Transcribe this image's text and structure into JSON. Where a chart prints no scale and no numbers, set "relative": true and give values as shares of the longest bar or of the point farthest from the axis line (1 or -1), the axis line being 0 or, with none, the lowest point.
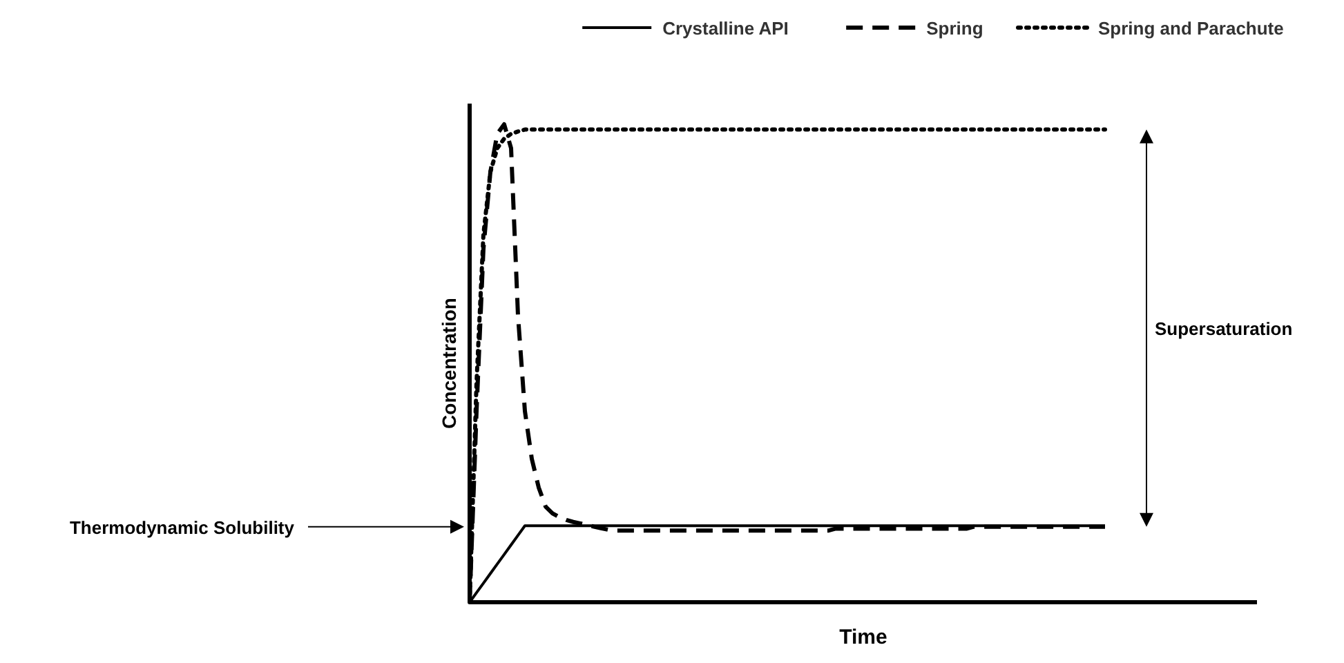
{
  "chart_data": {
    "type": "line",
    "relative": true,
    "xlabel": "Time",
    "ylabel": "Concentration",
    "legend": "top right",
    "marker": "none",
    "categories": [
      null,
      null,
      null,
      null,
      null,
      null,
      null,
      null,
      null,
      null,
      null,
      null,
      null,
      null,
      null,
      null,
      null,
      null,
      null,
      null,
      null,
      null,
      null,
      null,
      null,
      null,
      null,
      null,
      null,
      null,
      null,
      null,
      null,
      null,
      null,
      null,
      null,
      null,
      null,
      null,
      null,
      null,
      null,
      null,
      null,
      null,
      null,
      null,
      null,
      null,
      null,
      null,
      null,
      null,
      null,
      null,
      null,
      null,
      null,
      null,
      null,
      null,
      null,
      null,
      null,
      null,
      null,
      null,
      null,
      null,
      null,
      null,
      null,
      null,
      null,
      null,
      null,
      null,
      null,
      null,
      null,
      null,
      null,
      null,
      null,
      null,
      null,
      null,
      null,
      null,
      null,
      null,
      null
    ],
    "series": [
      {
        "name": "Crystalline API",
        "color": "#000000",
        "line_style": "solid",
        "values": [
          0,
          0.02,
          0.04,
          0.06,
          0.08,
          0.1,
          0.12,
          0.14,
          0.16,
          0.16,
          0.16,
          0.16,
          0.16,
          0.16,
          0.16,
          0.16,
          0.16,
          0.16,
          0.16,
          0.16,
          0.16,
          0.16,
          0.16,
          0.16,
          0.16,
          0.16,
          0.16,
          0.16,
          0.16,
          0.16,
          0.16,
          0.16,
          0.16,
          0.16,
          0.16,
          0.16,
          0.16,
          0.16,
          0.16,
          0.16,
          0.16,
          0.16,
          0.16,
          0.16,
          0.16,
          0.16,
          0.16,
          0.16,
          0.16,
          0.16,
          0.16,
          0.16,
          0.16,
          0.16,
          0.16,
          0.16,
          0.16,
          0.16,
          0.16,
          0.16,
          0.16,
          0.16,
          0.16,
          0.16,
          0.16,
          0.16,
          0.16,
          0.16,
          0.16,
          0.16,
          0.16,
          0.16,
          0.16,
          0.16,
          0.16,
          0.16,
          0.16,
          0.16,
          0.16,
          0.16,
          0.16,
          0.16,
          0.16,
          0.16,
          0.16,
          0.16,
          0.16,
          0.16,
          0.16,
          0.16,
          0.16,
          0.16,
          0.16
        ]
      },
      {
        "name": "Spring",
        "color": "#000000",
        "line_style": "dashed",
        "values": [
          0,
          0.4,
          0.74,
          0.9,
          0.98,
          1,
          0.95,
          0.6,
          0.4,
          0.3,
          0.24,
          0.2,
          0.186,
          0.178,
          0.172,
          0.168,
          0.165,
          0.162,
          0.158,
          0.155,
          0.152,
          0.15,
          0.15,
          0.15,
          0.15,
          0.15,
          0.15,
          0.15,
          0.15,
          0.15,
          0.15,
          0.15,
          0.15,
          0.15,
          0.15,
          0.15,
          0.15,
          0.15,
          0.15,
          0.15,
          0.15,
          0.15,
          0.15,
          0.15,
          0.15,
          0.15,
          0.15,
          0.15,
          0.15,
          0.15,
          0.15,
          0.15,
          0.15,
          0.154,
          0.154,
          0.154,
          0.154,
          0.154,
          0.154,
          0.154,
          0.154,
          0.154,
          0.154,
          0.154,
          0.154,
          0.154,
          0.154,
          0.154,
          0.154,
          0.154,
          0.154,
          0.154,
          0.154,
          0.158,
          0.158,
          0.158,
          0.158,
          0.158,
          0.158,
          0.158,
          0.158,
          0.158,
          0.158,
          0.158,
          0.158,
          0.158,
          0.158,
          0.158,
          0.158,
          0.158,
          0.158,
          0.158,
          0.158
        ]
      },
      {
        "name": "Spring and Parachute",
        "color": "#000000",
        "line_style": "dotted",
        "values": [
          0,
          0.46,
          0.77,
          0.9,
          0.95,
          0.97,
          0.98,
          0.985,
          0.989,
          0.989,
          0.989,
          0.989,
          0.989,
          0.989,
          0.989,
          0.989,
          0.989,
          0.989,
          0.989,
          0.989,
          0.989,
          0.989,
          0.989,
          0.989,
          0.989,
          0.989,
          0.989,
          0.989,
          0.989,
          0.989,
          0.989,
          0.989,
          0.989,
          0.989,
          0.989,
          0.989,
          0.989,
          0.989,
          0.989,
          0.989,
          0.989,
          0.989,
          0.989,
          0.989,
          0.989,
          0.989,
          0.989,
          0.989,
          0.989,
          0.989,
          0.989,
          0.989,
          0.989,
          0.989,
          0.989,
          0.989,
          0.989,
          0.989,
          0.989,
          0.989,
          0.989,
          0.989,
          0.989,
          0.989,
          0.989,
          0.989,
          0.989,
          0.989,
          0.989,
          0.989,
          0.989,
          0.989,
          0.989,
          0.989,
          0.989,
          0.989,
          0.989,
          0.989,
          0.989,
          0.989,
          0.989,
          0.989,
          0.989,
          0.989,
          0.989,
          0.989,
          0.989,
          0.989,
          0.989,
          0.989,
          0.989,
          0.989,
          0.989
        ]
      }
    ],
    "annotations": [
      "Thermodynamic Solubility",
      "Supersaturation"
    ]
  }
}
